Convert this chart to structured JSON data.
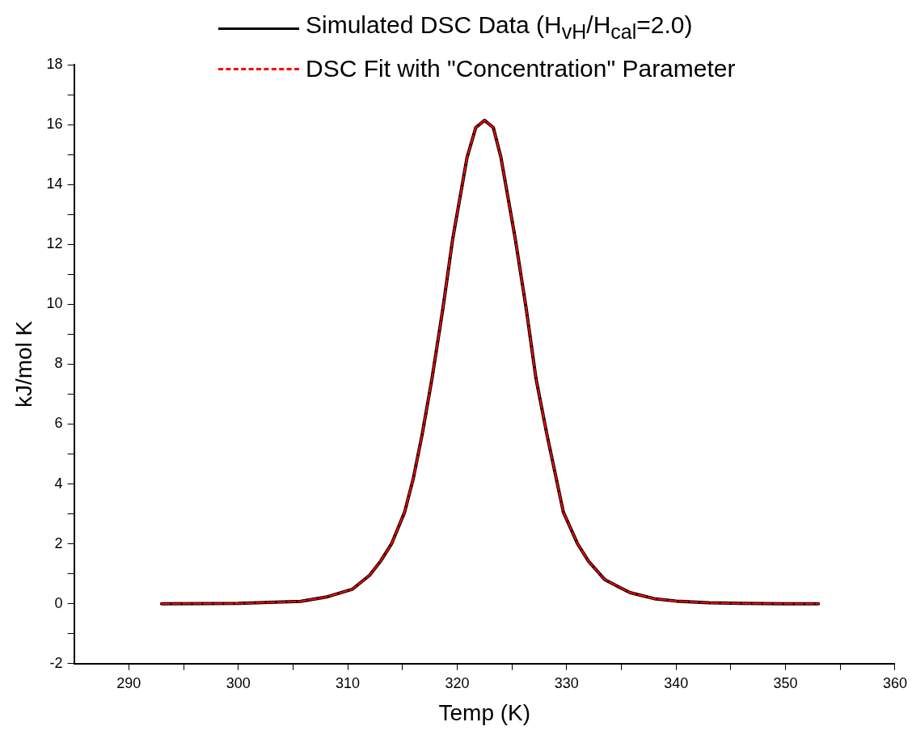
{
  "chart_data": {
    "type": "line",
    "xlabel": "Temp (K)",
    "ylabel": "kJ/mol K",
    "x": [
      293,
      300,
      305.7,
      308,
      310.4,
      312,
      313,
      314,
      315.2,
      316,
      316.8,
      317.7,
      318.7,
      319.6,
      320.9,
      321.7,
      322.5,
      323.3,
      324,
      325.3,
      326.3,
      327.2,
      328.2,
      329.7,
      331,
      332,
      333.5,
      335.8,
      338,
      340,
      343,
      346,
      350,
      353
    ],
    "series": [
      {
        "name": "Simulated DSC Data (H$_{vH}$/H$_{cal}$=2.0)",
        "color": "#000000",
        "line_style": "solid",
        "values": [
          0,
          0.01,
          0.08,
          0.22,
          0.48,
          0.95,
          1.42,
          2.0,
          3.06,
          4.2,
          5.65,
          7.52,
          9.87,
          12.2,
          14.9,
          15.9,
          16.14,
          15.9,
          14.9,
          12.2,
          9.87,
          7.52,
          5.65,
          3.06,
          2.0,
          1.42,
          0.8,
          0.37,
          0.17,
          0.09,
          0.03,
          0.01,
          0,
          0
        ]
      },
      {
        "name": "DSC Fit with \"Concentration\" Parameter",
        "color": "#ff0000",
        "line_style": "dashed",
        "values": [
          0,
          0.01,
          0.08,
          0.22,
          0.48,
          0.95,
          1.42,
          2.0,
          3.06,
          4.2,
          5.65,
          7.52,
          9.87,
          12.2,
          14.9,
          15.9,
          16.14,
          15.9,
          14.9,
          12.2,
          9.87,
          7.52,
          5.65,
          3.06,
          2.0,
          1.42,
          0.8,
          0.37,
          0.17,
          0.09,
          0.03,
          0.01,
          0,
          0
        ]
      }
    ],
    "xlim": [
      285,
      360
    ],
    "xticks": [
      290,
      {
        "value": 295,
        "label": null
      },
      300,
      {
        "value": 305,
        "label": null
      },
      310,
      {
        "value": 315,
        "label": null
      },
      320,
      {
        "value": 325,
        "label": null
      },
      330,
      {
        "value": 335,
        "label": null
      },
      340,
      {
        "value": 345,
        "label": null
      },
      350,
      {
        "value": 355,
        "label": null
      },
      360
    ],
    "ylim": [
      -2,
      18
    ],
    "yticks": [
      -2,
      {
        "value": -1,
        "label": null
      },
      0,
      {
        "value": 1,
        "label": null
      },
      2,
      {
        "value": 3,
        "label": null
      },
      4,
      {
        "value": 5,
        "label": null
      },
      6,
      {
        "value": 7,
        "label": null
      },
      8,
      {
        "value": 9,
        "label": null
      },
      10,
      {
        "value": 11,
        "label": null
      },
      12,
      {
        "value": 13,
        "label": null
      },
      14,
      {
        "value": 15,
        "label": null
      },
      16,
      {
        "value": 17,
        "label": null
      },
      18
    ],
    "grid": false,
    "legend": "top",
    "marker": "none"
  }
}
